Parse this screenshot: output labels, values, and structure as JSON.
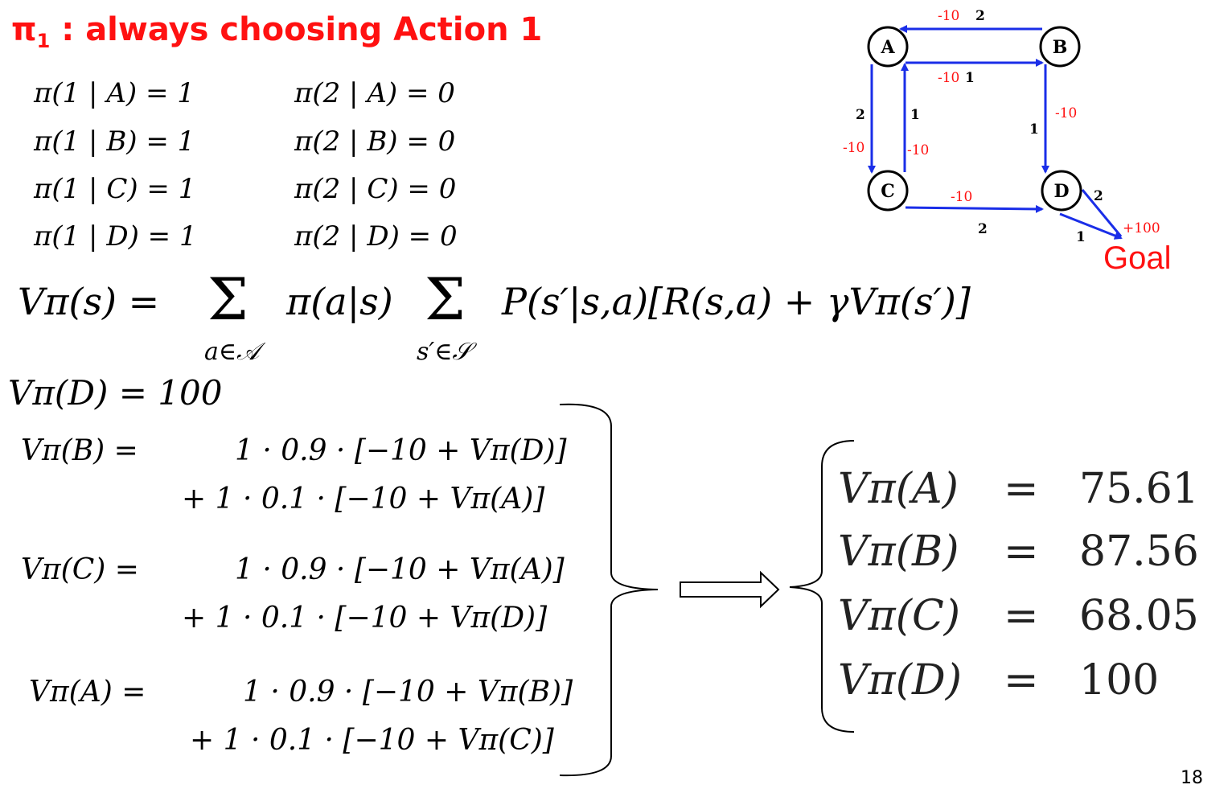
{
  "title": {
    "symbol": "π",
    "sub": "1",
    "text": " : always choosing Action 1"
  },
  "policy_rows": [
    {
      "left": "π(1 | A) = 1",
      "right": "π(2 | A) = 0"
    },
    {
      "left": "π(1 | B) = 1",
      "right": "π(2 | B) = 0"
    },
    {
      "left": "π(1 | C) = 1",
      "right": "π(2 | C) = 0"
    },
    {
      "left": "π(1 | D) = 1",
      "right": "π(2 | D) = 0"
    }
  ],
  "bellman": {
    "lhs": "Vπ(s) =",
    "sum1": "Σ",
    "sub1": "a∈𝒜",
    "mid": "π(a|s)",
    "sum2": "Σ",
    "sub2": "s′∈𝒮",
    "rhs": "P(s′|s,a)[R(s,a) + γVπ(s′)]"
  },
  "vd": "Vπ(D) = 100",
  "equations": [
    {
      "lhs": "Vπ(B) =",
      "line1": "1 · 0.9 · [−10 + Vπ(D)]",
      "line2": "+  1 · 0.1 · [−10 + Vπ(A)]"
    },
    {
      "lhs": "Vπ(C) =",
      "line1": "1 · 0.9 · [−10 + Vπ(A)]",
      "line2": "+  1 · 0.1 · [−10 + Vπ(D)]"
    },
    {
      "lhs": "Vπ(A) =",
      "line1": "1 · 0.9 · [−10 + Vπ(B)]",
      "line2": "+  1 · 0.1 · [−10 + Vπ(C)]"
    }
  ],
  "results": [
    {
      "lhs": "Vπ(A)",
      "eq": "=",
      "val": "75.61"
    },
    {
      "lhs": "Vπ(B)",
      "eq": "=",
      "val": "87.56"
    },
    {
      "lhs": "Vπ(C)",
      "eq": "=",
      "val": "68.05"
    },
    {
      "lhs": "Vπ(D)",
      "eq": "=",
      "val": "100"
    }
  ],
  "graph": {
    "nodes": {
      "a": "A",
      "b": "B",
      "c": "C",
      "d": "D"
    },
    "goal": "Goal",
    "labels": {
      "ba_reward": "-10",
      "ba_action": "2",
      "ab_reward": "-10",
      "ab_action": "1",
      "ac_action": "2",
      "ac_reward": "-10",
      "ca_action": "1",
      "ca_reward": "-10",
      "bd_reward": "-10",
      "bd_action": "1",
      "cd_reward": "-10",
      "cd_action": "2",
      "d_action2": "2",
      "goal_reward": "+100",
      "dg_action": "1"
    },
    "colors": {
      "arrow": "#1a2ee8",
      "reward": "#ff1111"
    }
  },
  "page_number": "18"
}
